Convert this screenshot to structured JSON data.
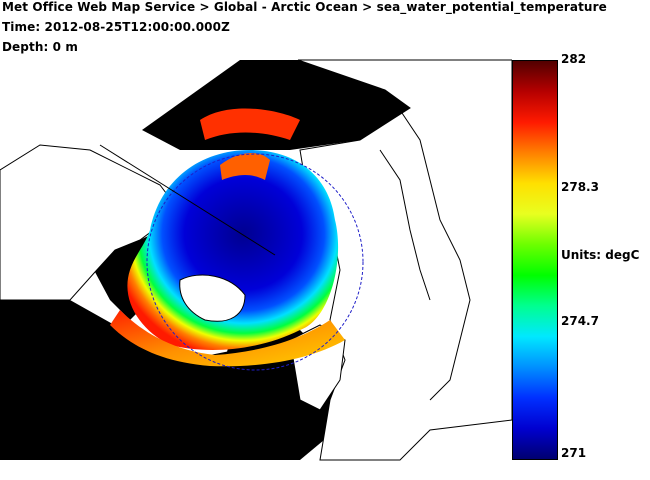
{
  "header": {
    "breadcrumb": "Met Office Web Map Service > Global - Arctic Ocean > sea_water_potential_temperature",
    "time": "Time: 2012-08-25T12:00:00.000Z",
    "depth": "Depth: 0 m"
  },
  "colorbar": {
    "max": "282",
    "tick_upper": "278.3",
    "units": "Units: degC",
    "tick_lower": "274.7",
    "min": "271",
    "gradient": [
      "#520000",
      "#b60000",
      "#ff1a00",
      "#ff8000",
      "#ffe000",
      "#e8ff20",
      "#6cff00",
      "#00ff00",
      "#00ff90",
      "#00e8ff",
      "#0090ff",
      "#0030ff",
      "#0000d0",
      "#000070"
    ]
  },
  "map": {
    "land_color": "#ffffff",
    "nodata_color": "#000000",
    "coast_color": "#000000",
    "circle_color": "#1e1ec8"
  }
}
